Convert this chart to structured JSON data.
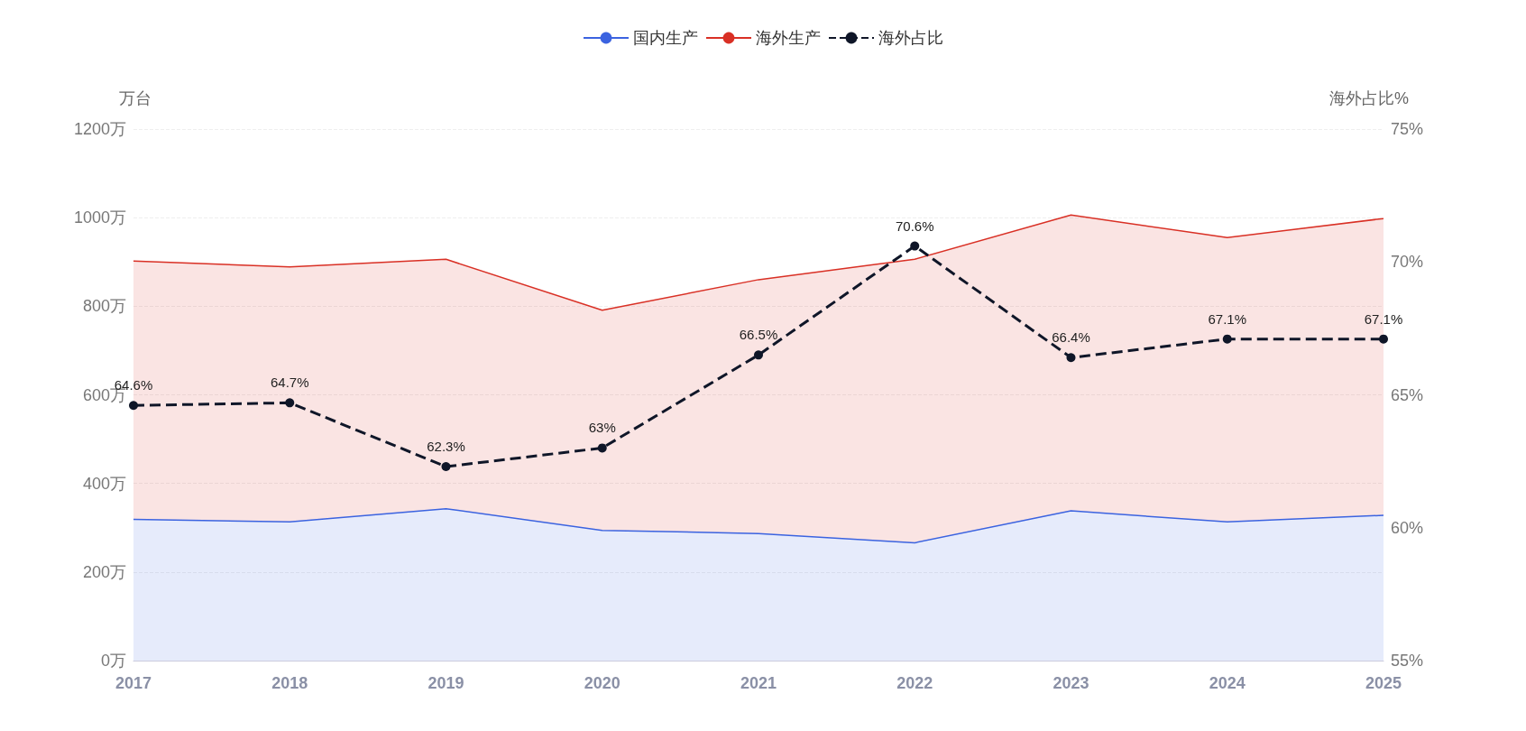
{
  "chart_data": {
    "type": "area",
    "stacked": true,
    "categories": [
      "2017",
      "2018",
      "2019",
      "2020",
      "2021",
      "2022",
      "2023",
      "2024",
      "2025"
    ],
    "ylabel": "万台",
    "y2label": "海外占比%",
    "ylim": [
      0,
      1200
    ],
    "yticks": [
      {
        "value": 0,
        "label": "0万"
      },
      {
        "value": 200,
        "label": "200万"
      },
      {
        "value": 400,
        "label": "400万"
      },
      {
        "value": 600,
        "label": "600万"
      },
      {
        "value": 800,
        "label": "800万"
      },
      {
        "value": 1000,
        "label": "1000万"
      },
      {
        "value": 1200,
        "label": "1200万"
      }
    ],
    "y2lim": [
      55,
      75
    ],
    "y2ticks": [
      {
        "value": 55,
        "label": "55%"
      },
      {
        "value": 60,
        "label": "60%"
      },
      {
        "value": 65,
        "label": "65%"
      },
      {
        "value": 70,
        "label": "70%"
      },
      {
        "value": 75,
        "label": "75%"
      }
    ],
    "grid": "y",
    "legend": "top",
    "series": [
      {
        "name": "国内生产",
        "color": "#3b63e0",
        "values": [
          319,
          313,
          343,
          294,
          287,
          266,
          338,
          313,
          328
        ]
      },
      {
        "name": "海外生产",
        "color": "#d93025",
        "values": [
          583,
          576,
          563,
          497,
          573,
          640,
          668,
          642,
          670
        ]
      },
      {
        "name": "海外占比",
        "type": "line",
        "axis": "y2",
        "color": "#0f1628",
        "line_style": "dashed",
        "marker": "circle",
        "values": [
          64.6,
          64.7,
          62.3,
          63,
          66.5,
          70.6,
          66.4,
          67.1,
          67.1
        ],
        "value_labels": [
          "64.6%",
          "64.7%",
          "62.3%",
          "63%",
          "66.5%",
          "70.6%",
          "66.4%",
          "67.1%",
          "67.1%"
        ]
      }
    ]
  }
}
